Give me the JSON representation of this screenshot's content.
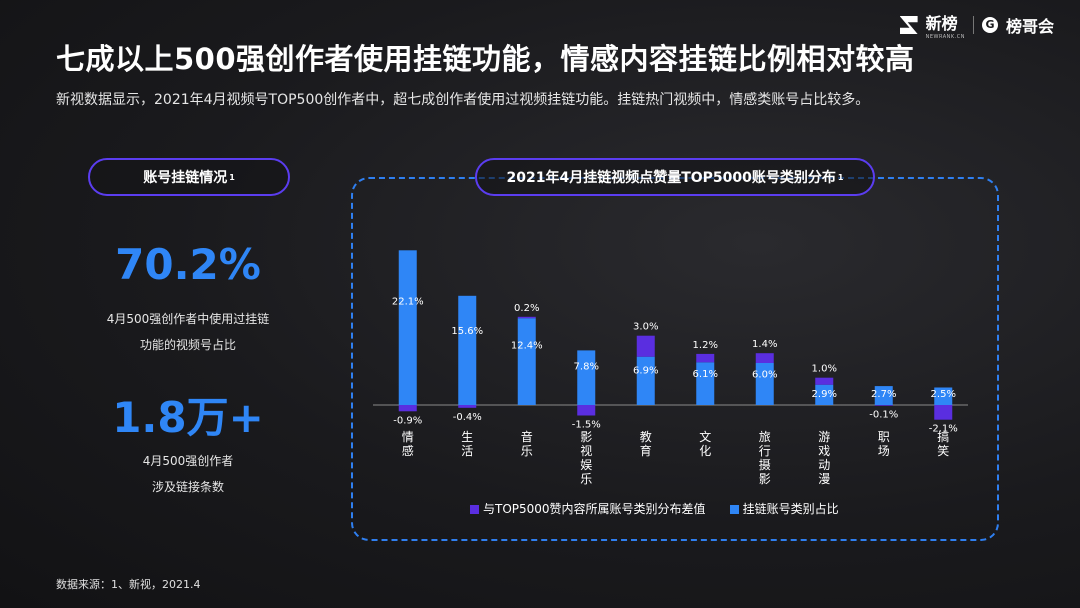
{
  "title": "七成以上500强创作者使用挂链功能，情感内容挂链比例相对较高",
  "subtitle": "新视数据显示，2021年4月视频号TOP500创作者中，超七成创作者使用过视频挂链功能。挂链热门视频中，情感类账号占比较多。",
  "logo": {
    "brand1": "新榜",
    "brand1_sub": "NEWRANK.CN",
    "brand2_mark": "G",
    "brand2": "榜哥会"
  },
  "left_panel": {
    "pill_label": "账号挂链情况",
    "pill_sup": "1",
    "stat1_value": "70.2%",
    "stat1_desc_line1": "4月500强创作者中使用过挂链",
    "stat1_desc_line2": "功能的视频号占比",
    "stat2_value": "1.8万+",
    "stat2_desc_line1": "4月500强创作者",
    "stat2_desc_line2": "涉及链接条数"
  },
  "chart_pill": {
    "label": "2021年4月挂链视频点赞量TOP5000账号类别分布",
    "sup": "1"
  },
  "chart_data": {
    "type": "bar",
    "title": "2021年4月挂链视频点赞量TOP5000账号类别分布",
    "categories": [
      "情感",
      "生活",
      "音乐",
      "影视娱乐",
      "教育",
      "文化",
      "旅行摄影",
      "游戏动漫",
      "职场",
      "搞笑"
    ],
    "series": [
      {
        "name": "挂链账号类别占比",
        "color": "#2f86f6",
        "values": [
          22.1,
          15.6,
          12.4,
          7.8,
          6.9,
          6.1,
          6.0,
          2.9,
          2.7,
          2.5
        ]
      },
      {
        "name": "与TOP5000赞内容所属账号类别分布差值",
        "color": "#5a2ee0",
        "values": [
          -0.9,
          -0.4,
          0.2,
          -1.5,
          3.0,
          1.2,
          1.4,
          1.0,
          -0.1,
          -2.1
        ]
      }
    ],
    "value_labels": {
      "share": [
        "22.1%",
        "15.6%",
        "12.4%",
        "7.8%",
        "6.9%",
        "6.1%",
        "6.0%",
        "2.9%",
        "2.7%",
        "2.5%"
      ],
      "diff": [
        "-0.9%",
        "-0.4%",
        "0.2%",
        "-1.5%",
        "3.0%",
        "1.2%",
        "1.4%",
        "1.0%",
        "-0.1%",
        "-2.1%"
      ]
    },
    "legend_position": "bottom",
    "grid": false
  },
  "legend": {
    "diff_label": "与TOP5000赞内容所属账号类别分布差值",
    "share_label": "挂链账号类别占比"
  },
  "source": "数据来源：1、新视，2021.4"
}
